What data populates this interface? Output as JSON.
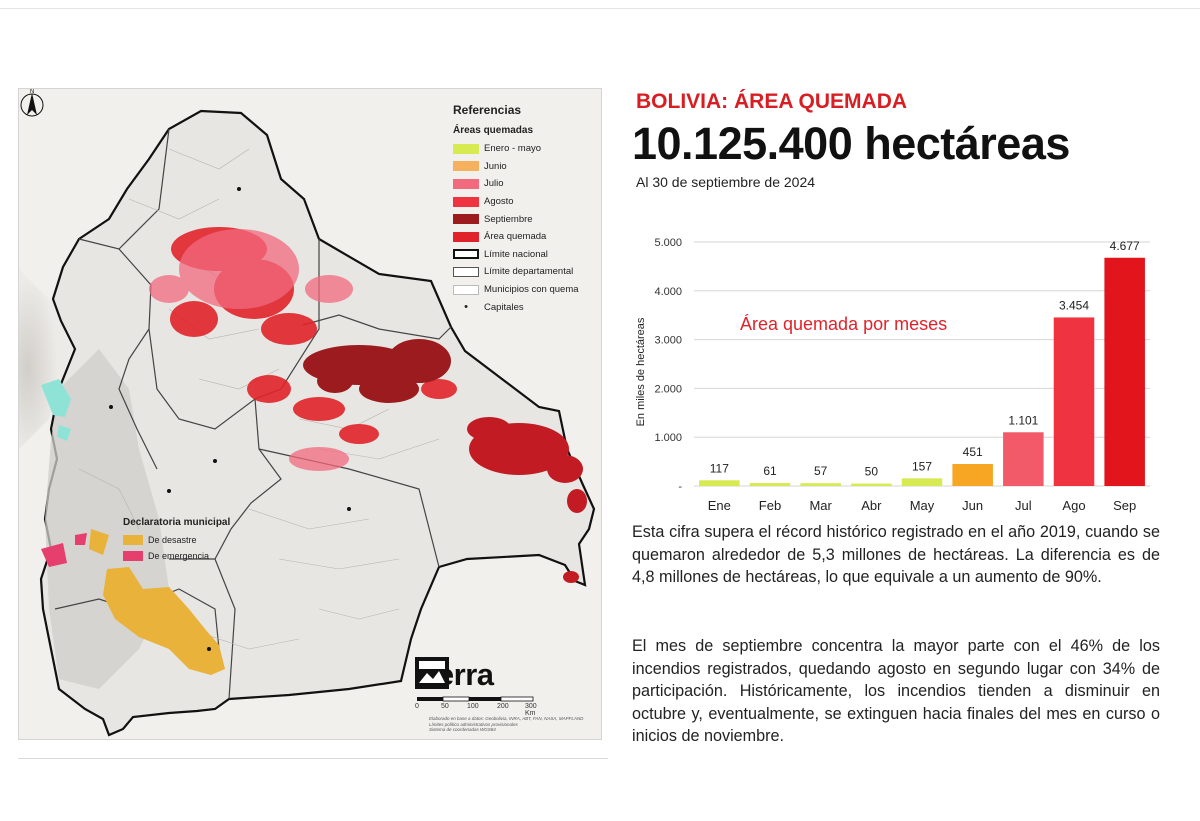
{
  "headline": "BOLIVIA: ÁREA QUEMADA",
  "total_area": "10.125.400 hectáreas",
  "date_note": "Al 30 de septiembre de 2024",
  "map": {
    "legend_title": "Referencias",
    "legend_subtitle": "Áreas quemadas",
    "legend_items": [
      {
        "label": "Enero - mayo",
        "color": "#d8ea52"
      },
      {
        "label": "Junio",
        "color": "#f6b15f"
      },
      {
        "label": "Julio",
        "color": "#f26a7e"
      },
      {
        "label": "Agosto",
        "color": "#ef3340"
      },
      {
        "label": "Septiembre",
        "color": "#9b1b1f"
      },
      {
        "label": "Área quemada",
        "color": "#e0232a"
      },
      {
        "label": "Límite nacional",
        "color": "#111111"
      },
      {
        "label": "Límite departamental",
        "color": "#555555"
      },
      {
        "label": "Municipios con quema",
        "color": "#bbbbbb"
      },
      {
        "label": "Capitales",
        "color": "#111111"
      }
    ],
    "declaratoria_title": "Declaratoria municipal",
    "declaratoria_items": [
      {
        "label": "De desastre",
        "color": "#e9b23a"
      },
      {
        "label": "De emergencia",
        "color": "#e63e6d"
      }
    ],
    "logo_text": "tierra",
    "scale_labels": [
      "0",
      "50",
      "100",
      "200",
      "300 Km"
    ],
    "credits": [
      "Elaborado en base a datos: Geobolivia, INRA, ABT, FAN, NASA, MAPFLAND",
      "Límites político administrativos provisionales",
      "Sistema de coordenadas WGS84"
    ]
  },
  "chart_data": {
    "type": "bar",
    "title": "Área quemada por meses",
    "ylabel": "En miles de hectáreas",
    "xlabel": "",
    "ylim": [
      0,
      5000
    ],
    "yticks": [
      "5.000",
      "4.000",
      "3.000",
      "2.000",
      "1.000",
      "-"
    ],
    "categories": [
      "Ene",
      "Feb",
      "Mar",
      "Abr",
      "May",
      "Jun",
      "Jul",
      "Ago",
      "Sep"
    ],
    "values": [
      117,
      61,
      57,
      50,
      157,
      451,
      1101,
      3454,
      4677
    ],
    "value_labels": [
      "117",
      "61",
      "57",
      "50",
      "157",
      "451",
      "1.101",
      "3.454",
      "4.677"
    ],
    "colors": [
      "#d8ea52",
      "#d8ea52",
      "#d8ea52",
      "#d8ea52",
      "#d8ea52",
      "#f6a623",
      "#f25a6a",
      "#ef3340",
      "#e2141c"
    ],
    "grid": true,
    "legend": "none"
  },
  "paragraph1": "Esta cifra supera el récord histórico registrado en el año 2019, cuando se quemaron alrededor de 5,3 millones de hectáreas. La diferencia es de 4,8 millones de hectáreas, lo que equivale a un aumento de 90%.",
  "paragraph2": "El mes de septiembre concentra la mayor parte con el 46% de los incendios registrados, quedando agosto en segundo lugar con 34% de participación. Históricamente, los incendios tienden a disminuir en octubre y, eventualmente, se extinguen hacia finales del mes en curso o inicios de noviembre."
}
